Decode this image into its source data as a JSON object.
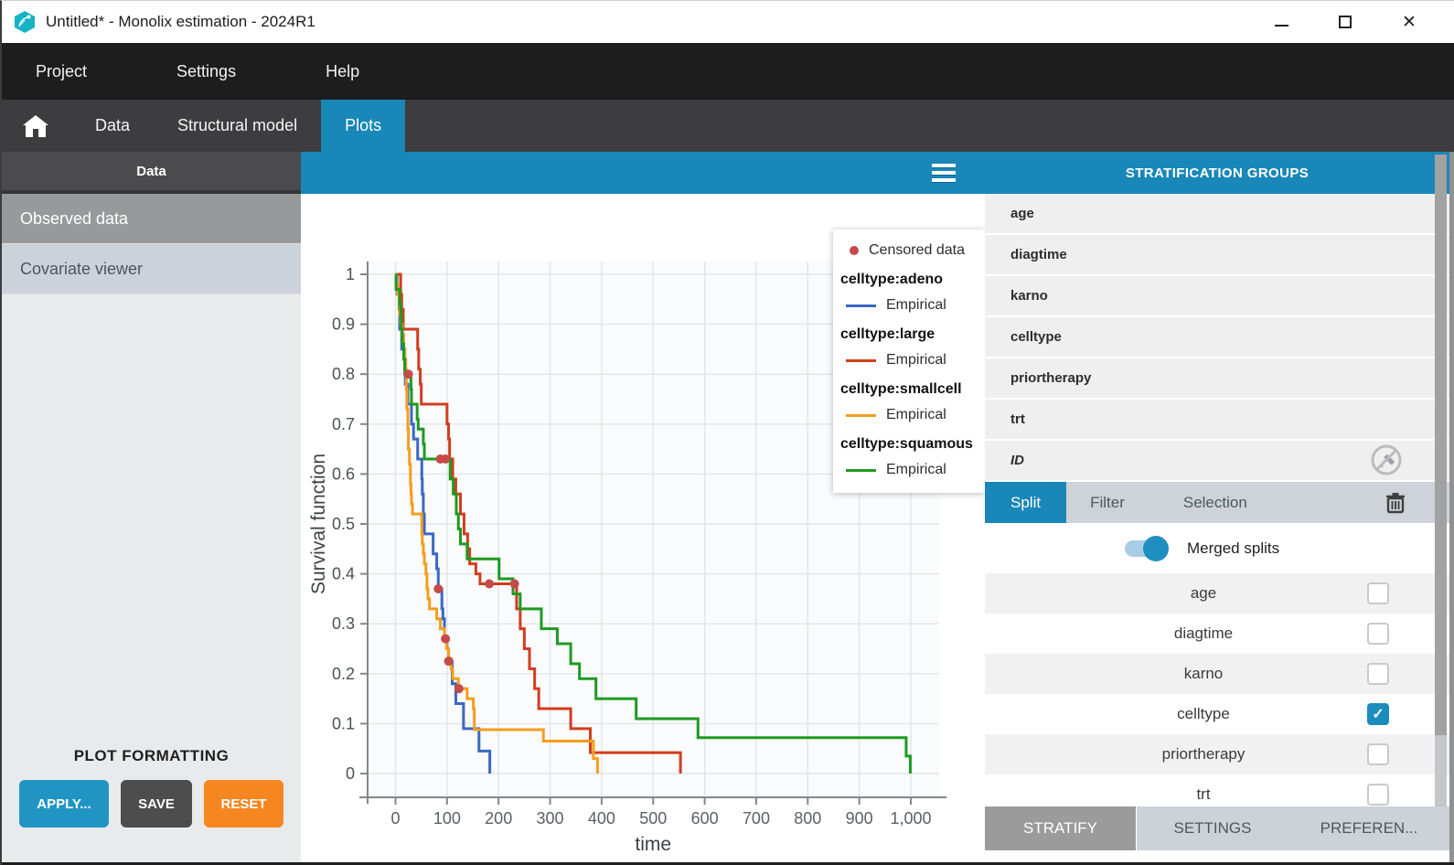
{
  "window": {
    "title": "Untitled* - Monolix estimation - 2024R1"
  },
  "menu": {
    "items": [
      "Project",
      "Settings",
      "Help"
    ]
  },
  "tabs": {
    "items": [
      "Data",
      "Structural model",
      "Plots"
    ],
    "active": "Plots"
  },
  "sidebar": {
    "header": "Data",
    "items": [
      {
        "label": "Observed data",
        "selected": true
      },
      {
        "label": "Covariate viewer",
        "selected": false
      }
    ],
    "plot_formatting": {
      "title": "PLOT FORMATTING",
      "apply": "APPLY...",
      "save": "SAVE",
      "reset": "RESET"
    }
  },
  "strat": {
    "header": "STRATIFICATION GROUPS",
    "groups": [
      "age",
      "diagtime",
      "karno",
      "celltype",
      "priortherapy",
      "trt",
      "ID"
    ],
    "tabs": {
      "split": "Split",
      "filter": "Filter",
      "selection": "Selection"
    },
    "merged_splits_label": "Merged splits",
    "merged_splits_on": true,
    "split_list": [
      {
        "label": "age",
        "checked": false
      },
      {
        "label": "diagtime",
        "checked": false
      },
      {
        "label": "karno",
        "checked": false
      },
      {
        "label": "celltype",
        "checked": true
      },
      {
        "label": "priortherapy",
        "checked": false
      },
      {
        "label": "trt",
        "checked": false
      }
    ],
    "footer": [
      "STRATIFY",
      "SETTINGS",
      "PREFEREN..."
    ]
  },
  "colors": {
    "accent_blue": "#1987b8",
    "apply_blue": "#2095c3",
    "reset_orange": "#f6861f",
    "save_gray": "#4d4d4d"
  },
  "chart_data": {
    "type": "line",
    "subtype": "kaplan-meier-step",
    "title": "",
    "xlabel": "time",
    "ylabel": "Survival function",
    "xlim": [
      -55,
      1045
    ],
    "ylim": [
      -0.05,
      1.05
    ],
    "grid": true,
    "x_ticks": {
      "values": [
        0,
        100,
        200,
        300,
        400,
        500,
        600,
        700,
        800,
        900,
        1000
      ],
      "labels": [
        "0",
        "100",
        "200",
        "300",
        "400",
        "500",
        "600",
        "700",
        "800",
        "900",
        "1,000"
      ]
    },
    "y_ticks": {
      "values": [
        0,
        0.1,
        0.2,
        0.3,
        0.4,
        0.5,
        0.6,
        0.7,
        0.8,
        0.9,
        1
      ],
      "labels": [
        "0",
        "0.1",
        "0.2",
        "0.3",
        "0.4",
        "0.5",
        "0.6",
        "0.7",
        "0.8",
        "0.9",
        "1"
      ]
    },
    "legend": {
      "position": "top-right",
      "censored_label": "Censored data",
      "empirical_label": "Empirical"
    },
    "series": [
      {
        "name": "celltype:adeno",
        "color": "#3a68c4",
        "steps": [
          [
            0,
            1.0
          ],
          [
            3,
            0.96
          ],
          [
            7,
            0.93
          ],
          [
            8,
            0.89
          ],
          [
            12,
            0.85
          ],
          [
            18,
            0.81
          ],
          [
            19,
            0.78
          ],
          [
            24,
            0.74
          ],
          [
            31,
            0.7
          ],
          [
            35,
            0.67
          ],
          [
            43,
            0.63
          ],
          [
            51,
            0.59
          ],
          [
            52,
            0.56
          ],
          [
            54,
            0.52
          ],
          [
            56,
            0.48
          ],
          [
            73,
            0.44
          ],
          [
            80,
            0.41
          ],
          [
            83,
            0.37
          ],
          [
            90,
            0.33
          ],
          [
            92,
            0.31
          ],
          [
            95,
            0.27
          ],
          [
            100,
            0.25
          ],
          [
            103,
            0.225
          ],
          [
            110,
            0.18
          ],
          [
            117,
            0.14
          ],
          [
            132,
            0.09
          ],
          [
            162,
            0.045
          ],
          [
            183,
            0.0
          ]
        ]
      },
      {
        "name": "celltype:large",
        "color": "#d23d1e",
        "steps": [
          [
            0,
            1.0
          ],
          [
            10,
            0.96
          ],
          [
            12,
            0.93
          ],
          [
            15,
            0.89
          ],
          [
            43,
            0.85
          ],
          [
            45,
            0.81
          ],
          [
            48,
            0.78
          ],
          [
            50,
            0.74
          ],
          [
            100,
            0.7
          ],
          [
            103,
            0.67
          ],
          [
            105,
            0.63
          ],
          [
            111,
            0.59
          ],
          [
            117,
            0.56
          ],
          [
            126,
            0.52
          ],
          [
            133,
            0.48
          ],
          [
            140,
            0.45
          ],
          [
            144,
            0.42
          ],
          [
            156,
            0.4
          ],
          [
            164,
            0.38
          ],
          [
            235,
            0.33
          ],
          [
            242,
            0.29
          ],
          [
            250,
            0.25
          ],
          [
            260,
            0.21
          ],
          [
            270,
            0.17
          ],
          [
            278,
            0.13
          ],
          [
            340,
            0.09
          ],
          [
            378,
            0.042
          ],
          [
            553,
            0.0
          ]
        ]
      },
      {
        "name": "celltype:smallcell",
        "color": "#f59e1d",
        "steps": [
          [
            0,
            1.0
          ],
          [
            2,
            0.98
          ],
          [
            4,
            0.96
          ],
          [
            7,
            0.94
          ],
          [
            8,
            0.92
          ],
          [
            10,
            0.9
          ],
          [
            13,
            0.88
          ],
          [
            16,
            0.85
          ],
          [
            18,
            0.83
          ],
          [
            20,
            0.81
          ],
          [
            21,
            0.77
          ],
          [
            22,
            0.73
          ],
          [
            24,
            0.69
          ],
          [
            25,
            0.65
          ],
          [
            27,
            0.62
          ],
          [
            29,
            0.58
          ],
          [
            30,
            0.56
          ],
          [
            31,
            0.54
          ],
          [
            33,
            0.52
          ],
          [
            51,
            0.48
          ],
          [
            52,
            0.46
          ],
          [
            54,
            0.44
          ],
          [
            56,
            0.42
          ],
          [
            59,
            0.4
          ],
          [
            61,
            0.37
          ],
          [
            63,
            0.35
          ],
          [
            66,
            0.33
          ],
          [
            80,
            0.31
          ],
          [
            87,
            0.29
          ],
          [
            95,
            0.27
          ],
          [
            99,
            0.25
          ],
          [
            103,
            0.23
          ],
          [
            108,
            0.21
          ],
          [
            111,
            0.19
          ],
          [
            122,
            0.17
          ],
          [
            139,
            0.15
          ],
          [
            151,
            0.13
          ],
          [
            153,
            0.088
          ],
          [
            287,
            0.065
          ],
          [
            384,
            0.03
          ],
          [
            392,
            0.0
          ]
        ]
      },
      {
        "name": "celltype:squamous",
        "color": "#1d9a21",
        "steps": [
          [
            0,
            1.0
          ],
          [
            1,
            0.97
          ],
          [
            8,
            0.94
          ],
          [
            10,
            0.92
          ],
          [
            11,
            0.89
          ],
          [
            13,
            0.86
          ],
          [
            16,
            0.83
          ],
          [
            18,
            0.8
          ],
          [
            30,
            0.77
          ],
          [
            31,
            0.74
          ],
          [
            42,
            0.71
          ],
          [
            44,
            0.69
          ],
          [
            54,
            0.66
          ],
          [
            56,
            0.63
          ],
          [
            106,
            0.59
          ],
          [
            112,
            0.56
          ],
          [
            118,
            0.52
          ],
          [
            122,
            0.49
          ],
          [
            126,
            0.46
          ],
          [
            139,
            0.43
          ],
          [
            201,
            0.39
          ],
          [
            228,
            0.36
          ],
          [
            242,
            0.33
          ],
          [
            283,
            0.29
          ],
          [
            314,
            0.26
          ],
          [
            340,
            0.22
          ],
          [
            357,
            0.19
          ],
          [
            389,
            0.15
          ],
          [
            467,
            0.11
          ],
          [
            587,
            0.072
          ],
          [
            991,
            0.035
          ],
          [
            999,
            0.0
          ]
        ]
      }
    ],
    "censored": {
      "color": "#c64a4a",
      "points": [
        [
          25,
          0.8
        ],
        [
          87,
          0.63
        ],
        [
          97,
          0.63
        ],
        [
          83,
          0.37
        ],
        [
          97,
          0.27
        ],
        [
          103,
          0.225
        ],
        [
          123,
          0.17
        ],
        [
          182,
          0.38
        ],
        [
          231,
          0.38
        ]
      ]
    }
  }
}
